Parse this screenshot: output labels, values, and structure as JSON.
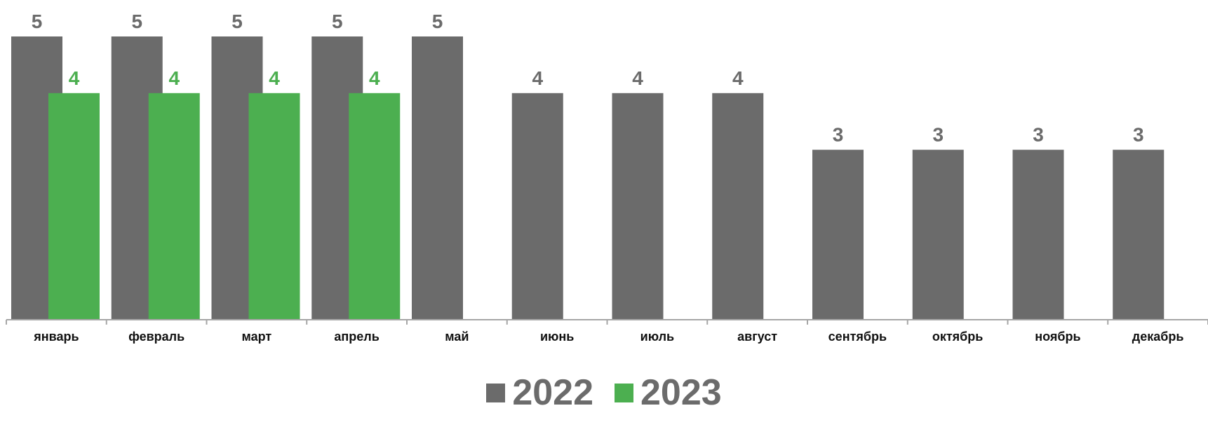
{
  "chart_data": {
    "type": "bar",
    "title": "",
    "xlabel": "",
    "ylabel": "",
    "ylim": [
      0,
      5.6
    ],
    "grid": false,
    "legend_position": "bottom-center",
    "categories": [
      "январь",
      "февраль",
      "март",
      "апрель",
      "май",
      "июнь",
      "июль",
      "август",
      "сентябрь",
      "октябрь",
      "ноябрь",
      "декабрь"
    ],
    "series": [
      {
        "name": "2022",
        "color": "#6b6b6b",
        "label_color": "#6b6b6b",
        "values": [
          5,
          5,
          5,
          5,
          5,
          4,
          4,
          4,
          3,
          3,
          3,
          3
        ]
      },
      {
        "name": "2023",
        "color": "#4caf50",
        "label_color": "#4caf50",
        "values": [
          4,
          4,
          4,
          4,
          null,
          null,
          null,
          null,
          null,
          null,
          null,
          null
        ]
      }
    ],
    "axis_color": "#a6a6a6"
  }
}
